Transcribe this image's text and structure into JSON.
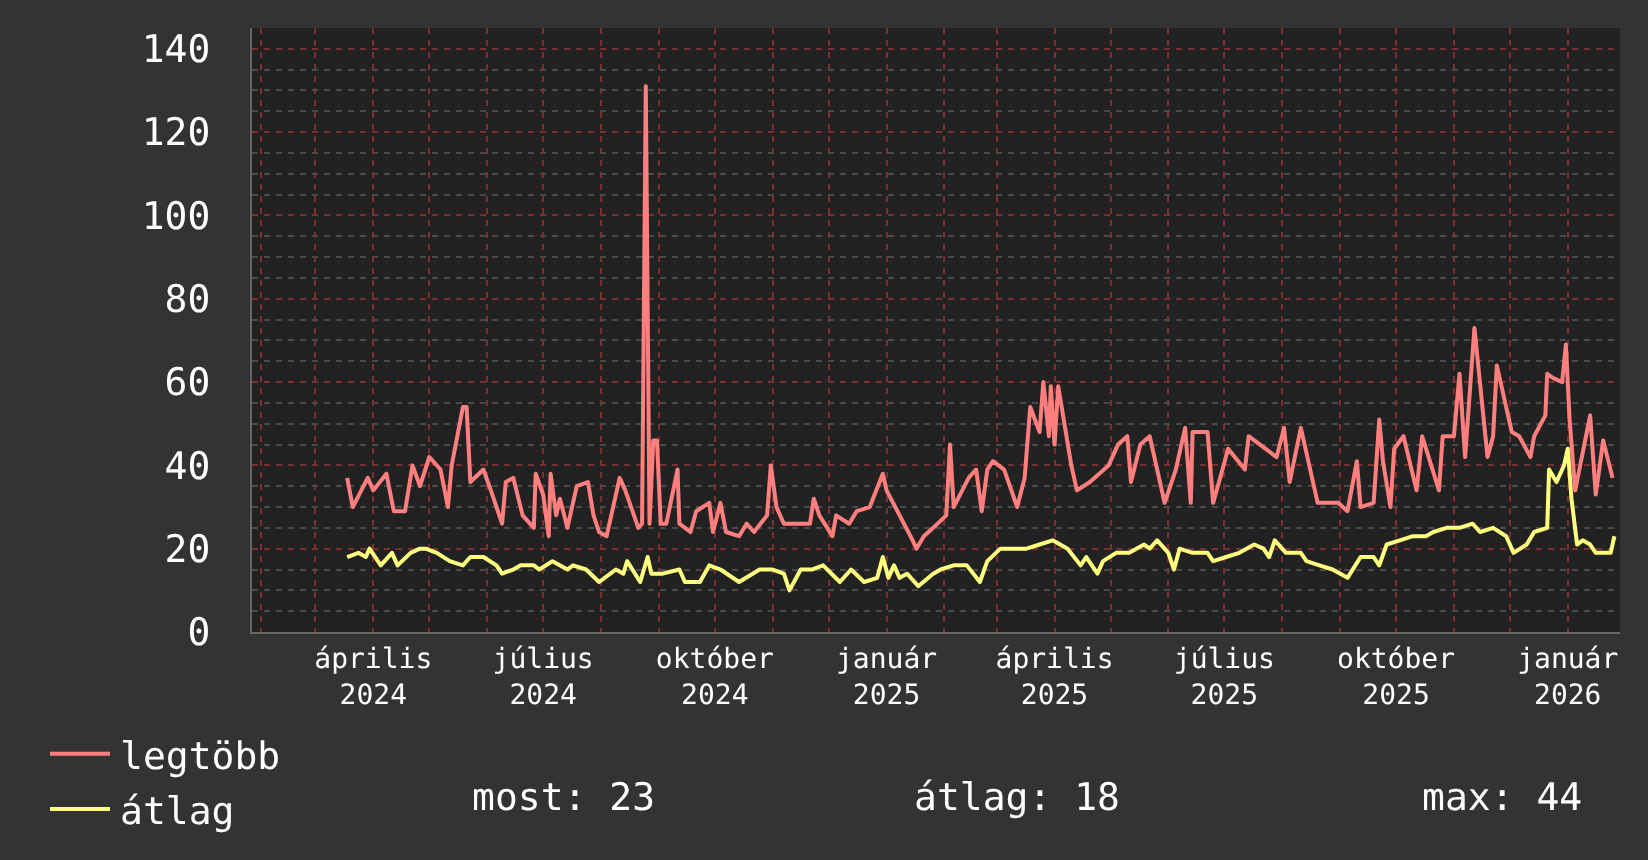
{
  "chart_data": {
    "type": "line",
    "xlim": [
      "2024-01-27",
      "2026-01-29"
    ],
    "xticks": [
      {
        "value": "2024-04-01",
        "label": "április 2024"
      },
      {
        "value": "2024-07-01",
        "label": "július 2024"
      },
      {
        "value": "2024-10-01",
        "label": "október 2024"
      },
      {
        "value": "2025-01-01",
        "label": "január 2025"
      },
      {
        "value": "2025-04-01",
        "label": "április 2025"
      },
      {
        "value": "2025-07-01",
        "label": "július 2025"
      },
      {
        "value": "2025-10-01",
        "label": "október 2025"
      },
      {
        "value": "2026-01-01",
        "label": "január 2026"
      }
    ],
    "ylim": [
      0,
      145
    ],
    "yticks": [
      0,
      20,
      40,
      60,
      80,
      100,
      120,
      140
    ],
    "grid": true,
    "legend": "bottom left",
    "line_style": "solid",
    "series": [
      {
        "name": "legtöbb",
        "color": "#ff7f7f",
        "x": [
          "2024-03-18",
          "2024-03-21",
          "2024-03-29",
          "2024-04-01",
          "2024-04-08",
          "2024-04-12",
          "2024-04-18",
          "2024-04-22",
          "2024-04-26",
          "2024-05-01",
          "2024-05-07",
          "2024-05-11",
          "2024-05-13",
          "2024-05-19",
          "2024-05-21",
          "2024-05-23",
          "2024-05-30",
          "2024-06-03",
          "2024-06-09",
          "2024-06-11",
          "2024-06-15",
          "2024-06-20",
          "2024-06-26",
          "2024-06-27",
          "2024-07-01",
          "2024-07-04",
          "2024-07-05",
          "2024-07-08",
          "2024-07-10",
          "2024-07-14",
          "2024-07-19",
          "2024-07-25",
          "2024-07-28",
          "2024-07-31",
          "2024-08-04",
          "2024-08-11",
          "2024-08-14",
          "2024-08-21",
          "2024-08-23",
          "2024-08-25",
          "2024-08-27",
          "2024-08-29",
          "2024-08-31",
          "2024-09-02",
          "2024-09-05",
          "2024-09-11",
          "2024-09-12",
          "2024-09-18",
          "2024-09-21",
          "2024-09-28",
          "2024-09-30",
          "2024-10-04",
          "2024-10-07",
          "2024-10-14",
          "2024-10-18",
          "2024-10-22",
          "2024-10-29",
          "2024-10-31",
          "2024-11-03",
          "2024-11-07",
          "2024-11-14",
          "2024-11-21",
          "2024-11-23",
          "2024-11-26",
          "2024-12-03",
          "2024-12-05",
          "2024-12-12",
          "2024-12-16",
          "2024-12-23",
          "2024-12-30",
          "2025-01-01",
          "2025-01-08",
          "2025-01-15",
          "2025-01-17",
          "2025-01-21",
          "2025-01-26",
          "2025-02-02",
          "2025-02-04",
          "2025-02-06",
          "2025-02-14",
          "2025-02-18",
          "2025-02-21",
          "2025-02-24",
          "2025-02-27",
          "2025-03-05",
          "2025-03-12",
          "2025-03-16",
          "2025-03-19",
          "2025-03-24",
          "2025-03-26",
          "2025-03-29",
          "2025-03-30",
          "2025-04-01",
          "2025-04-03",
          "2025-04-10",
          "2025-04-13",
          "2025-04-20",
          "2025-04-30",
          "2025-05-05",
          "2025-05-10",
          "2025-05-12",
          "2025-05-17",
          "2025-05-22",
          "2025-05-30",
          "2025-06-05",
          "2025-06-10",
          "2025-06-13",
          "2025-06-14",
          "2025-06-22",
          "2025-06-25",
          "2025-06-30",
          "2025-07-03",
          "2025-07-12",
          "2025-07-14",
          "2025-07-23",
          "2025-07-29",
          "2025-08-02",
          "2025-08-05",
          "2025-08-11",
          "2025-08-20",
          "2025-08-31",
          "2025-09-05",
          "2025-09-10",
          "2025-09-12",
          "2025-09-19",
          "2025-09-22",
          "2025-09-24",
          "2025-09-28",
          "2025-09-30",
          "2025-10-05",
          "2025-10-12",
          "2025-10-15",
          "2025-10-24",
          "2025-10-26",
          "2025-11-01",
          "2025-11-04",
          "2025-11-07",
          "2025-11-12",
          "2025-11-19",
          "2025-11-22",
          "2025-11-24",
          "2025-12-02",
          "2025-12-06",
          "2025-12-12",
          "2025-12-14",
          "2025-12-20",
          "2025-12-21",
          "2025-12-24",
          "2025-12-29",
          "2025-12-31",
          "2026-01-02",
          "2026-01-05",
          "2026-01-13",
          "2026-01-16",
          "2026-01-20",
          "2026-01-25"
        ],
        "values": [
          37,
          30,
          37,
          34,
          38,
          29,
          29,
          40,
          35,
          42,
          39,
          30,
          40,
          54,
          54,
          36,
          39,
          34,
          26,
          36,
          37,
          28,
          25,
          38,
          33,
          23,
          38,
          28,
          32,
          25,
          35,
          36,
          28,
          24,
          23,
          37,
          34,
          25,
          26,
          131,
          26,
          46,
          46,
          26,
          26,
          39,
          26,
          24,
          29,
          31,
          24,
          31,
          24,
          23,
          26,
          24,
          28,
          40,
          30,
          26,
          26,
          26,
          32,
          28,
          23,
          28,
          26,
          29,
          30,
          38,
          34,
          28,
          22,
          20,
          23,
          25,
          28,
          45,
          30,
          37,
          39,
          29,
          39,
          41,
          39,
          30,
          37,
          54,
          48,
          60,
          47,
          59,
          45,
          59,
          40,
          34,
          36,
          40,
          45,
          47,
          36,
          45,
          47,
          31,
          39,
          49,
          31,
          48,
          48,
          31,
          39,
          44,
          39,
          47,
          44,
          42,
          49,
          36,
          49,
          31,
          31,
          29,
          41,
          30,
          31,
          51,
          41,
          30,
          44,
          47,
          34,
          47,
          34,
          47,
          47,
          62,
          42,
          73,
          42,
          47,
          64,
          48,
          47,
          42,
          47,
          52,
          62,
          61,
          60,
          69,
          51,
          34,
          52,
          33,
          46,
          37
        ]
      },
      {
        "name": "átlag",
        "color": "#ffff7f",
        "x": [
          "2024-03-18",
          "2024-03-24",
          "2024-03-28",
          "2024-03-30",
          "2024-04-05",
          "2024-04-11",
          "2024-04-14",
          "2024-04-21",
          "2024-04-26",
          "2024-04-29",
          "2024-05-05",
          "2024-05-12",
          "2024-05-19",
          "2024-05-23",
          "2024-05-30",
          "2024-06-06",
          "2024-06-09",
          "2024-06-15",
          "2024-06-19",
          "2024-06-26",
          "2024-06-29",
          "2024-07-06",
          "2024-07-14",
          "2024-07-17",
          "2024-07-24",
          "2024-07-31",
          "2024-08-06",
          "2024-08-09",
          "2024-08-13",
          "2024-08-15",
          "2024-08-22",
          "2024-08-26",
          "2024-08-28",
          "2024-09-03",
          "2024-09-12",
          "2024-09-15",
          "2024-09-23",
          "2024-09-28",
          "2024-10-04",
          "2024-10-14",
          "2024-10-25",
          "2024-11-01",
          "2024-11-07",
          "2024-11-10",
          "2024-11-16",
          "2024-11-22",
          "2024-11-28",
          "2024-12-07",
          "2024-12-13",
          "2024-12-20",
          "2024-12-27",
          "2024-12-30",
          "2025-01-02",
          "2025-01-05",
          "2025-01-08",
          "2025-01-12",
          "2025-01-18",
          "2025-01-26",
          "2025-01-30",
          "2025-02-06",
          "2025-02-13",
          "2025-02-20",
          "2025-02-24",
          "2025-03-03",
          "2025-03-10",
          "2025-03-17",
          "2025-03-24",
          "2025-03-31",
          "2025-04-08",
          "2025-04-15",
          "2025-04-18",
          "2025-04-24",
          "2025-04-27",
          "2025-05-04",
          "2025-05-11",
          "2025-05-19",
          "2025-05-22",
          "2025-05-26",
          "2025-06-01",
          "2025-06-04",
          "2025-06-07",
          "2025-06-14",
          "2025-06-22",
          "2025-06-25",
          "2025-07-02",
          "2025-07-09",
          "2025-07-17",
          "2025-07-22",
          "2025-07-25",
          "2025-07-28",
          "2025-08-03",
          "2025-08-11",
          "2025-08-14",
          "2025-08-21",
          "2025-08-28",
          "2025-09-05",
          "2025-09-12",
          "2025-09-19",
          "2025-09-22",
          "2025-09-26",
          "2025-10-03",
          "2025-10-10",
          "2025-10-17",
          "2025-10-21",
          "2025-10-28",
          "2025-11-04",
          "2025-11-11",
          "2025-11-15",
          "2025-11-22",
          "2025-11-29",
          "2025-12-03",
          "2025-12-10",
          "2025-12-14",
          "2025-12-21",
          "2025-12-22",
          "2025-12-26",
          "2025-12-30",
          "2026-01-01",
          "2026-01-03",
          "2026-01-06",
          "2026-01-09",
          "2026-01-13",
          "2026-01-16",
          "2026-01-20",
          "2026-01-24",
          "2026-01-26"
        ],
        "values": [
          18,
          19,
          18,
          20,
          16,
          19,
          16,
          19,
          20,
          20,
          19,
          17,
          16,
          18,
          18,
          16,
          14,
          15,
          16,
          16,
          15,
          17,
          15,
          16,
          15,
          12,
          14,
          15,
          14,
          17,
          12,
          18,
          14,
          14,
          15,
          12,
          12,
          16,
          15,
          12,
          15,
          15,
          14,
          10,
          15,
          15,
          16,
          12,
          15,
          12,
          13,
          18,
          13,
          16,
          13,
          14,
          11,
          14,
          15,
          16,
          16,
          12,
          17,
          20,
          20,
          20,
          21,
          22,
          20,
          16,
          18,
          14,
          17,
          19,
          19,
          21,
          20,
          22,
          19,
          15,
          20,
          19,
          19,
          17,
          18,
          19,
          21,
          20,
          18,
          22,
          19,
          19,
          17,
          16,
          15,
          13,
          18,
          18,
          16,
          21,
          22,
          23,
          23,
          24,
          25,
          25,
          26,
          24,
          25,
          23,
          19,
          21,
          24,
          25,
          39,
          36,
          40,
          44,
          32,
          21,
          22,
          21,
          19,
          19,
          19,
          23
        ]
      }
    ],
    "annotations": [
      "most: 23",
      "átlag: 18",
      "max: 44"
    ]
  }
}
